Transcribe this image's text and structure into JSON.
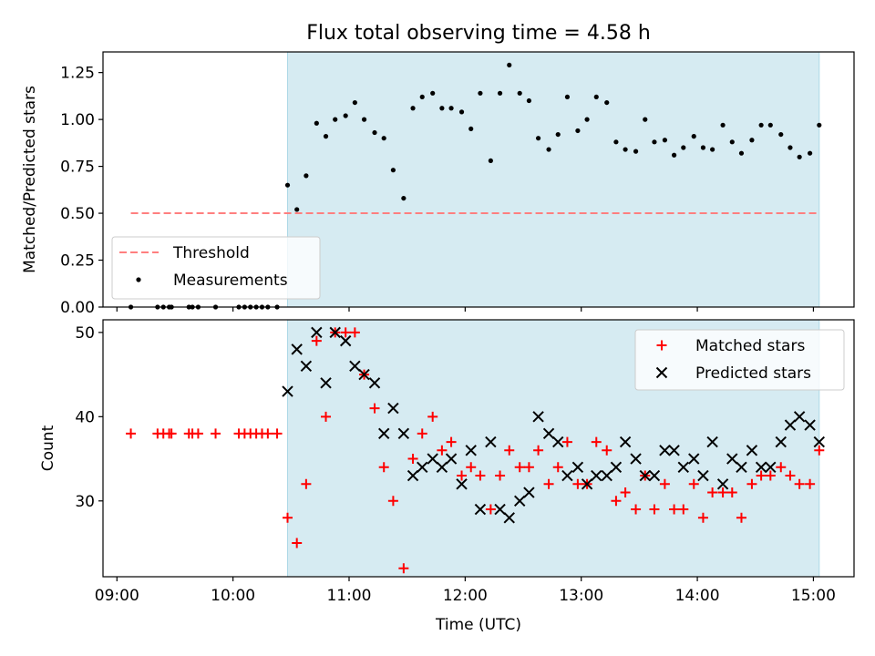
{
  "figure_title": "Flux total observing time = 4.58 h",
  "colors": {
    "span": "#add8e6",
    "threshold": "#ff7f7f",
    "measurements": "#000000",
    "matched": "#ff0000",
    "predicted": "#000000"
  },
  "chart_data": [
    {
      "type": "scatter",
      "title": "Flux total observing time = 4.58 h",
      "xlabel": "",
      "ylabel": "Matched/Predicted stars",
      "xlim": [
        8.88,
        15.35
      ],
      "ylim": [
        0.0,
        1.36
      ],
      "yticks": [
        0.0,
        0.25,
        0.5,
        0.75,
        1.0,
        1.25
      ],
      "ytick_labels": [
        "0.00",
        "0.25",
        "0.50",
        "0.75",
        "1.00",
        "1.25"
      ],
      "shaded_span": [
        10.47,
        15.05
      ],
      "threshold": {
        "label": "Threshold",
        "value": 0.5,
        "x_range": [
          9.12,
          15.05
        ]
      },
      "legend": {
        "location": "lower-left",
        "entries": [
          "Threshold",
          "Measurements"
        ]
      },
      "series": [
        {
          "name": "Measurements",
          "x": [
            9.12,
            9.35,
            9.4,
            9.45,
            9.47,
            9.62,
            9.65,
            9.7,
            9.85,
            10.05,
            10.1,
            10.15,
            10.2,
            10.25,
            10.3,
            10.38,
            10.47,
            10.55,
            10.63,
            10.72,
            10.8,
            10.88,
            10.97,
            11.05,
            11.13,
            11.22,
            11.3,
            11.38,
            11.47,
            11.55,
            11.63,
            11.72,
            11.8,
            11.88,
            11.97,
            12.05,
            12.13,
            12.22,
            12.3,
            12.38,
            12.47,
            12.55,
            12.63,
            12.72,
            12.8,
            12.88,
            12.97,
            13.05,
            13.13,
            13.22,
            13.3,
            13.38,
            13.47,
            13.55,
            13.63,
            13.72,
            13.8,
            13.88,
            13.97,
            14.05,
            14.13,
            14.22,
            14.3,
            14.38,
            14.47,
            14.55,
            14.63,
            14.72,
            14.8,
            14.88,
            14.97,
            15.05
          ],
          "y": [
            0,
            0,
            0,
            0,
            0,
            0,
            0,
            0,
            0,
            0,
            0,
            0,
            0,
            0,
            0,
            0,
            0.65,
            0.52,
            0.7,
            0.98,
            0.91,
            1.0,
            1.02,
            1.09,
            1.0,
            0.93,
            0.9,
            0.73,
            0.58,
            1.06,
            1.12,
            1.14,
            1.06,
            1.06,
            1.04,
            0.95,
            1.14,
            0.78,
            1.14,
            1.29,
            1.14,
            1.1,
            0.9,
            0.84,
            0.92,
            1.12,
            0.94,
            1.0,
            1.12,
            1.09,
            0.88,
            0.84,
            0.83,
            1.0,
            0.88,
            0.89,
            0.81,
            0.85,
            0.91,
            0.85,
            0.84,
            0.97,
            0.88,
            0.82,
            0.89,
            0.97,
            0.97,
            0.92,
            0.85,
            0.8,
            0.82,
            0.97
          ]
        }
      ]
    },
    {
      "type": "scatter",
      "title": "",
      "xlabel": "Time (UTC)",
      "ylabel": "Count",
      "xlim": [
        8.88,
        15.35
      ],
      "ylim": [
        21,
        51.5
      ],
      "yticks": [
        30,
        40,
        50
      ],
      "ytick_labels": [
        "30",
        "40",
        "50"
      ],
      "xticks": [
        9,
        10,
        11,
        12,
        13,
        14,
        15
      ],
      "xtick_labels": [
        "09:00",
        "10:00",
        "11:00",
        "12:00",
        "13:00",
        "14:00",
        "15:00"
      ],
      "shaded_span": [
        10.47,
        15.05
      ],
      "legend": {
        "location": "top-right",
        "entries": [
          "Matched stars",
          "Predicted stars"
        ]
      },
      "series": [
        {
          "name": "Matched stars",
          "marker": "plus",
          "x": [
            9.12,
            9.35,
            9.4,
            9.45,
            9.47,
            9.62,
            9.65,
            9.7,
            9.85,
            10.05,
            10.1,
            10.15,
            10.2,
            10.25,
            10.3,
            10.38,
            10.47,
            10.55,
            10.63,
            10.72,
            10.8,
            10.88,
            10.97,
            11.05,
            11.13,
            11.22,
            11.3,
            11.38,
            11.47,
            11.55,
            11.63,
            11.72,
            11.8,
            11.88,
            11.97,
            12.05,
            12.13,
            12.22,
            12.3,
            12.38,
            12.47,
            12.55,
            12.63,
            12.72,
            12.8,
            12.88,
            12.97,
            13.05,
            13.13,
            13.22,
            13.3,
            13.38,
            13.47,
            13.55,
            13.63,
            13.72,
            13.8,
            13.88,
            13.97,
            14.05,
            14.13,
            14.22,
            14.3,
            14.38,
            14.47,
            14.55,
            14.63,
            14.72,
            14.8,
            14.88,
            14.97,
            15.05
          ],
          "y": [
            38,
            38,
            38,
            38,
            38,
            38,
            38,
            38,
            38,
            38,
            38,
            38,
            38,
            38,
            38,
            38,
            28,
            25,
            32,
            49,
            40,
            50,
            50,
            50,
            45,
            41,
            34,
            30,
            22,
            35,
            38,
            40,
            36,
            37,
            33,
            34,
            33,
            29,
            33,
            36,
            34,
            34,
            36,
            32,
            34,
            37,
            32,
            32,
            37,
            36,
            30,
            31,
            29,
            33,
            29,
            32,
            29,
            29,
            32,
            28,
            31,
            31,
            31,
            28,
            32,
            33,
            33,
            34,
            33,
            32,
            32,
            36
          ]
        },
        {
          "name": "Predicted stars",
          "marker": "x",
          "x": [
            10.47,
            10.55,
            10.63,
            10.72,
            10.8,
            10.88,
            10.97,
            11.05,
            11.13,
            11.22,
            11.3,
            11.38,
            11.47,
            11.55,
            11.63,
            11.72,
            11.8,
            11.88,
            11.97,
            12.05,
            12.13,
            12.22,
            12.3,
            12.38,
            12.47,
            12.55,
            12.63,
            12.72,
            12.8,
            12.88,
            12.97,
            13.05,
            13.13,
            13.22,
            13.3,
            13.38,
            13.47,
            13.55,
            13.63,
            13.72,
            13.8,
            13.88,
            13.97,
            14.05,
            14.13,
            14.22,
            14.3,
            14.38,
            14.47,
            14.55,
            14.63,
            14.72,
            14.8,
            14.88,
            14.97,
            15.05
          ],
          "y": [
            43,
            48,
            46,
            50,
            44,
            50,
            49,
            46,
            45,
            44,
            38,
            41,
            38,
            33,
            34,
            35,
            34,
            35,
            32,
            36,
            29,
            37,
            29,
            28,
            30,
            31,
            40,
            38,
            37,
            33,
            34,
            32,
            33,
            33,
            34,
            37,
            35,
            33,
            33,
            36,
            36,
            34,
            35,
            33,
            37,
            32,
            35,
            34,
            36,
            34,
            34,
            37,
            39,
            40,
            39,
            37
          ]
        }
      ]
    }
  ]
}
